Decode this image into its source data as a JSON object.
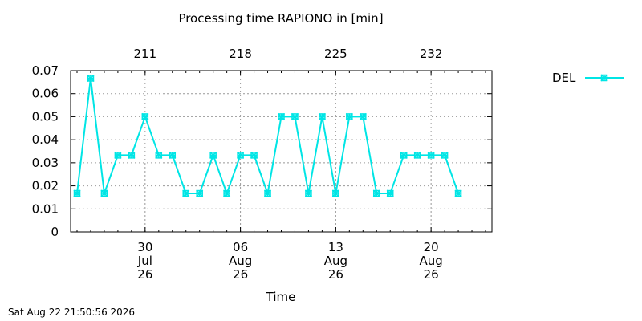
{
  "chart_data": {
    "type": "line",
    "title": "Processing time RAPIONO in [min]",
    "xlabel": "Time",
    "ylabel": "",
    "ylim": [
      0,
      0.07
    ],
    "yticks": [
      {
        "value": 0,
        "label": "0"
      },
      {
        "value": 0.01,
        "label": "0.01"
      },
      {
        "value": 0.02,
        "label": "0.02"
      },
      {
        "value": 0.03,
        "label": "0.03"
      },
      {
        "value": 0.04,
        "label": "0.04"
      },
      {
        "value": 0.05,
        "label": "0.05"
      },
      {
        "value": 0.06,
        "label": "0.06"
      },
      {
        "value": 0.07,
        "label": "0.07"
      }
    ],
    "xlim": [
      "2026-07-25",
      "2026-08-24"
    ],
    "xticks": [
      {
        "date": "2026-07-30",
        "label": [
          "30",
          "Jul",
          "26"
        ]
      },
      {
        "date": "2026-08-06",
        "label": [
          "06",
          "Aug",
          "26"
        ]
      },
      {
        "date": "2026-08-13",
        "label": [
          "13",
          "Aug",
          "26"
        ]
      },
      {
        "date": "2026-08-20",
        "label": [
          "20",
          "Aug",
          "26"
        ]
      }
    ],
    "x2ticks": [
      {
        "date": "2026-07-30",
        "label": "211"
      },
      {
        "date": "2026-08-06",
        "label": "218"
      },
      {
        "date": "2026-08-13",
        "label": "225"
      },
      {
        "date": "2026-08-20",
        "label": "232"
      }
    ],
    "grid": true,
    "legend_position": "right",
    "series": [
      {
        "name": "DEL",
        "color": "#00e5e5",
        "marker": "asterisk-square",
        "points": [
          {
            "x": "2026-07-25",
            "y": 0.0167
          },
          {
            "x": "2026-07-26",
            "y": 0.0667
          },
          {
            "x": "2026-07-27",
            "y": 0.0167
          },
          {
            "x": "2026-07-28",
            "y": 0.0333
          },
          {
            "x": "2026-07-29",
            "y": 0.0333
          },
          {
            "x": "2026-07-30",
            "y": 0.05
          },
          {
            "x": "2026-07-31",
            "y": 0.0333
          },
          {
            "x": "2026-08-01",
            "y": 0.0333
          },
          {
            "x": "2026-08-02",
            "y": 0.0167
          },
          {
            "x": "2026-08-03",
            "y": 0.0167
          },
          {
            "x": "2026-08-04",
            "y": 0.0333
          },
          {
            "x": "2026-08-05",
            "y": 0.0167
          },
          {
            "x": "2026-08-06",
            "y": 0.0333
          },
          {
            "x": "2026-08-07",
            "y": 0.0333
          },
          {
            "x": "2026-08-08",
            "y": 0.0167
          },
          {
            "x": "2026-08-09",
            "y": 0.05
          },
          {
            "x": "2026-08-10",
            "y": 0.05
          },
          {
            "x": "2026-08-11",
            "y": 0.0167
          },
          {
            "x": "2026-08-12",
            "y": 0.05
          },
          {
            "x": "2026-08-13",
            "y": 0.0167
          },
          {
            "x": "2026-08-14",
            "y": 0.05
          },
          {
            "x": "2026-08-15",
            "y": 0.05
          },
          {
            "x": "2026-08-16",
            "y": 0.0167
          },
          {
            "x": "2026-08-17",
            "y": 0.0167
          },
          {
            "x": "2026-08-18",
            "y": 0.0333
          },
          {
            "x": "2026-08-19",
            "y": 0.0333
          },
          {
            "x": "2026-08-20",
            "y": 0.0333
          },
          {
            "x": "2026-08-21",
            "y": 0.0333
          },
          {
            "x": "2026-08-22",
            "y": 0.0167
          }
        ]
      }
    ]
  },
  "legend": {
    "label": "DEL"
  },
  "footer": {
    "timestamp": "Sat Aug 22 21:50:56 2026"
  }
}
